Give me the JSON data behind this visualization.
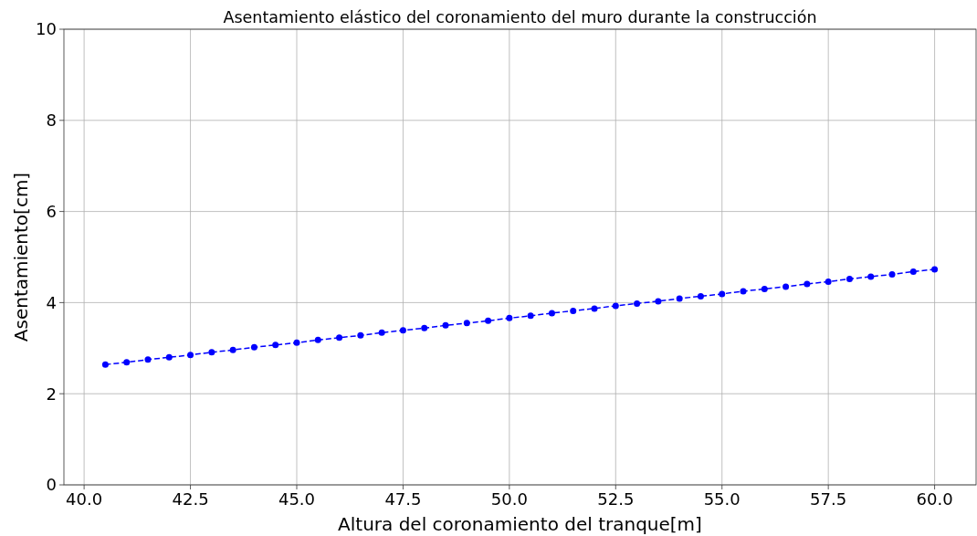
{
  "chart_data": {
    "type": "line",
    "title": "Asentamiento elástico del coronamiento del muro durante la construcción",
    "xlabel": "Altura del coronamiento del tranque[m]",
    "ylabel": "Asentamiento[cm]",
    "x": [
      40.5,
      41.0,
      41.5,
      42.0,
      42.5,
      43.0,
      43.5,
      44.0,
      44.5,
      45.0,
      45.5,
      46.0,
      46.5,
      47.0,
      47.5,
      48.0,
      48.5,
      49.0,
      49.5,
      50.0,
      50.5,
      51.0,
      51.5,
      52.0,
      52.5,
      53.0,
      53.5,
      54.0,
      54.5,
      55.0,
      55.5,
      56.0,
      56.5,
      57.0,
      57.5,
      58.0,
      58.5,
      59.0,
      59.5,
      60.0
    ],
    "series": [
      {
        "color": "#0000ff",
        "values": [
          2.64,
          2.69,
          2.75,
          2.8,
          2.85,
          2.91,
          2.96,
          3.02,
          3.07,
          3.12,
          3.18,
          3.23,
          3.28,
          3.34,
          3.39,
          3.44,
          3.5,
          3.55,
          3.6,
          3.66,
          3.71,
          3.77,
          3.82,
          3.87,
          3.93,
          3.98,
          4.03,
          4.09,
          4.14,
          4.19,
          4.25,
          4.3,
          4.35,
          4.41,
          4.46,
          4.52,
          4.57,
          4.62,
          4.68,
          4.73
        ]
      }
    ],
    "xlim": [
      39.525,
      60.975
    ],
    "xticks": [
      {
        "value": 40,
        "label": "40.0"
      },
      {
        "value": 42.5,
        "label": "42.5"
      },
      {
        "value": 45,
        "label": "45.0"
      },
      {
        "value": 47.5,
        "label": "47.5"
      },
      {
        "value": 50,
        "label": "50.0"
      },
      {
        "value": 52.5,
        "label": "52.5"
      },
      {
        "value": 55,
        "label": "55.0"
      },
      {
        "value": 57.5,
        "label": "57.5"
      },
      {
        "value": 60,
        "label": "60.0"
      }
    ],
    "ylim": [
      0,
      10
    ],
    "yticks": [
      0,
      2,
      4,
      6,
      8,
      10
    ],
    "grid": true,
    "marker": "circle",
    "line_style": "dashed"
  }
}
